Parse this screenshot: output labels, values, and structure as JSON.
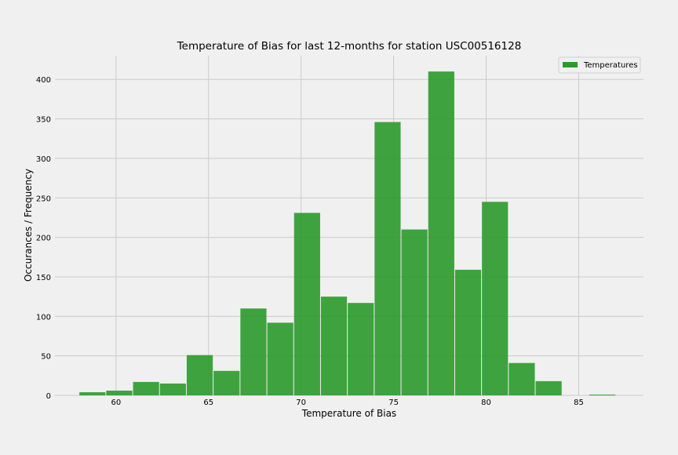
{
  "chart_data": {
    "type": "bar",
    "title": "Temperature of Bias for last 12-months for station USC00516128",
    "xlabel": "Temperature of Bias",
    "ylabel": "Occurances / Frequency",
    "xlim": [
      56.7,
      88.5
    ],
    "ylim": [
      0,
      430
    ],
    "xticks": [
      60,
      65,
      70,
      75,
      80,
      85
    ],
    "yticks": [
      0,
      50,
      100,
      150,
      200,
      250,
      300,
      350,
      400
    ],
    "grid": true,
    "legend_position": "top-right",
    "series": [
      {
        "name": "Temperatures",
        "color": "#2a9a2a",
        "bin_width": 1.45,
        "bins": [
          {
            "x0": 58.0,
            "x1": 59.45,
            "value": 4
          },
          {
            "x0": 59.45,
            "x1": 60.9,
            "value": 6
          },
          {
            "x0": 60.9,
            "x1": 62.35,
            "value": 17
          },
          {
            "x0": 62.35,
            "x1": 63.8,
            "value": 15
          },
          {
            "x0": 63.8,
            "x1": 65.25,
            "value": 51
          },
          {
            "x0": 65.25,
            "x1": 66.7,
            "value": 31
          },
          {
            "x0": 66.7,
            "x1": 68.15,
            "value": 110
          },
          {
            "x0": 68.15,
            "x1": 69.6,
            "value": 92
          },
          {
            "x0": 69.6,
            "x1": 71.05,
            "value": 231
          },
          {
            "x0": 71.05,
            "x1": 72.5,
            "value": 125
          },
          {
            "x0": 72.5,
            "x1": 73.95,
            "value": 117
          },
          {
            "x0": 73.95,
            "x1": 75.4,
            "value": 346
          },
          {
            "x0": 75.4,
            "x1": 76.85,
            "value": 210
          },
          {
            "x0": 76.85,
            "x1": 78.3,
            "value": 410
          },
          {
            "x0": 78.3,
            "x1": 79.75,
            "value": 159
          },
          {
            "x0": 79.75,
            "x1": 81.2,
            "value": 245
          },
          {
            "x0": 81.2,
            "x1": 82.65,
            "value": 41
          },
          {
            "x0": 82.65,
            "x1": 84.1,
            "value": 18
          },
          {
            "x0": 84.1,
            "x1": 85.55,
            "value": 0
          },
          {
            "x0": 85.55,
            "x1": 87.0,
            "value": 1
          }
        ]
      }
    ]
  }
}
